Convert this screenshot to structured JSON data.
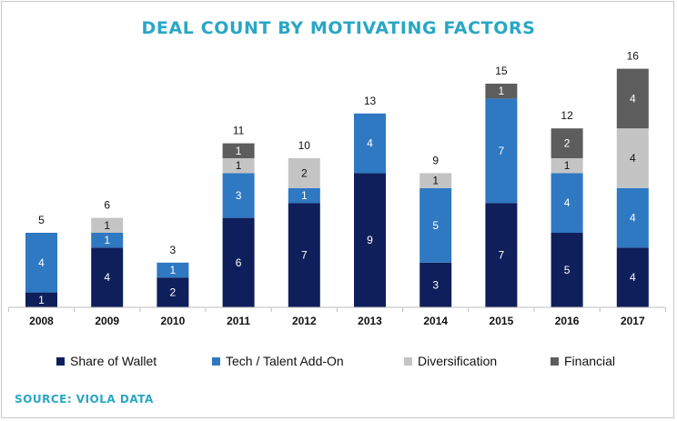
{
  "chart_data": {
    "type": "bar",
    "stacked": true,
    "title": "DEAL COUNT BY MOTIVATING FACTORS",
    "categories": [
      "2008",
      "2009",
      "2010",
      "2011",
      "2012",
      "2013",
      "2014",
      "2015",
      "2016",
      "2017"
    ],
    "totals": [
      5,
      6,
      3,
      11,
      10,
      13,
      9,
      15,
      12,
      16
    ],
    "series": [
      {
        "name": "Share of Wallet",
        "color": "#0e1f5b",
        "values": [
          1,
          4,
          2,
          6,
          7,
          9,
          3,
          7,
          5,
          4
        ]
      },
      {
        "name": "Tech / Talent Add-On",
        "color": "#2f78c2",
        "values": [
          4,
          1,
          1,
          3,
          1,
          4,
          5,
          7,
          4,
          4
        ]
      },
      {
        "name": "Diversification",
        "color": "#c4c4c4",
        "values": [
          0,
          1,
          0,
          1,
          2,
          0,
          1,
          0,
          1,
          4
        ]
      },
      {
        "name": "Financial",
        "color": "#5d5d5d",
        "values": [
          0,
          0,
          0,
          1,
          0,
          0,
          0,
          1,
          2,
          4
        ]
      }
    ],
    "legend_position": "bottom",
    "grid": false
  },
  "source": "SOURCE: VIOLA DATA"
}
